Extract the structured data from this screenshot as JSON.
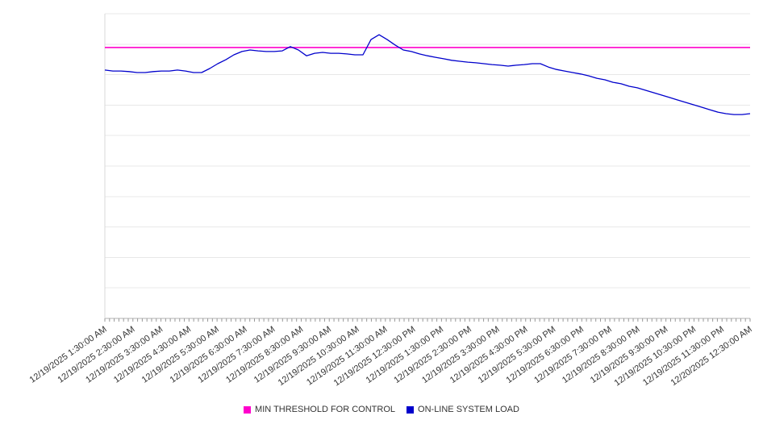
{
  "legend": {
    "position": "bottom-center"
  },
  "chart_data": {
    "type": "line",
    "title": "",
    "xlabel": "",
    "ylabel": "",
    "grid": true,
    "y_tick_labels_visible": false,
    "ylim": [
      0,
      100
    ],
    "legend_position": "bottom-center",
    "categories": [
      "12/19/2025 1:30:00 AM",
      "12/19/2025 2:30:00 AM",
      "12/19/2025 3:30:00 AM",
      "12/19/2025 4:30:00 AM",
      "12/19/2025 5:30:00 AM",
      "12/19/2025 6:30:00 AM",
      "12/19/2025 7:30:00 AM",
      "12/19/2025 8:30:00 AM",
      "12/19/2025 9:30:00 AM",
      "12/19/2025 10:30:00 AM",
      "12/19/2025 11:30:00 AM",
      "12/19/2025 12:30:00 PM",
      "12/19/2025 1:30:00 PM",
      "12/19/2025 2:30:00 PM",
      "12/19/2025 3:30:00 PM",
      "12/19/2025 4:30:00 PM",
      "12/19/2025 5:30:00 PM",
      "12/19/2025 6:30:00 PM",
      "12/19/2025 7:30:00 PM",
      "12/19/2025 8:30:00 PM",
      "12/19/2025 9:30:00 PM",
      "12/19/2025 10:30:00 PM",
      "12/19/2025 11:30:00 PM",
      "12/20/2025 12:30:00 AM"
    ],
    "series": [
      {
        "name": "MIN THRESHOLD FOR CONTROL",
        "type": "constant-threshold",
        "color": "#ff00cc",
        "value": 88.9
      },
      {
        "name": "ON-LINE SYSTEM LOAD",
        "type": "line",
        "color": "#0000cc",
        "values": [
          81.5,
          81.2,
          81.2,
          81.0,
          80.7,
          80.7,
          81.0,
          81.2,
          81.2,
          81.5,
          81.2,
          80.7,
          80.7,
          82.0,
          83.6,
          84.9,
          86.5,
          87.6,
          88.1,
          87.8,
          87.6,
          87.6,
          87.8,
          89.2,
          88.1,
          86.2,
          87.0,
          87.3,
          87.0,
          87.0,
          86.8,
          86.5,
          86.5,
          91.5,
          93.1,
          91.5,
          89.7,
          88.1,
          87.6,
          86.8,
          86.2,
          85.7,
          85.2,
          84.7,
          84.4,
          84.1,
          83.9,
          83.6,
          83.3,
          83.1,
          82.8,
          83.1,
          83.3,
          83.6,
          83.6,
          82.5,
          81.7,
          81.2,
          80.7,
          80.2,
          79.6,
          78.8,
          78.3,
          77.5,
          77.0,
          76.2,
          75.7,
          74.9,
          74.1,
          73.3,
          72.5,
          71.7,
          70.9,
          70.1,
          69.3,
          68.5,
          67.7,
          67.2,
          66.9,
          66.9,
          67.2
        ]
      }
    ]
  }
}
